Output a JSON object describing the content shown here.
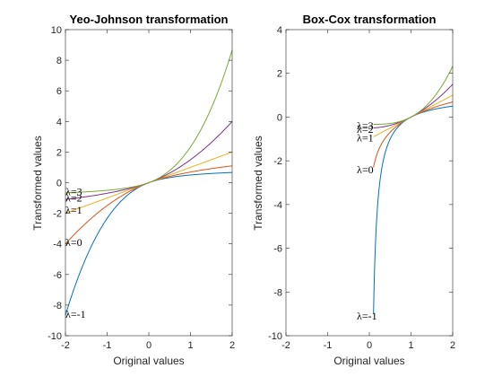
{
  "chart_data": [
    {
      "type": "line",
      "title": "Yeo-Johnson transformation",
      "xlabel": "Original values",
      "ylabel": "Transformed values",
      "xlim": [
        -2,
        2
      ],
      "ylim": [
        -10,
        10
      ],
      "xticks": [
        "-2",
        "-1",
        "0",
        "1",
        "2"
      ],
      "yticks": [
        "-10",
        "-8",
        "-6",
        "-4",
        "-2",
        "0",
        "2",
        "4",
        "6",
        "8",
        "10"
      ],
      "grid": false,
      "x_range": [
        -2,
        2
      ],
      "series": [
        {
          "name": "λ=-1",
          "color": "#0072BD",
          "lambda": -1
        },
        {
          "name": "λ=0",
          "color": "#D95319",
          "lambda": 0
        },
        {
          "name": "λ=1",
          "color": "#EDB120",
          "lambda": 1
        },
        {
          "name": "λ=2",
          "color": "#7E2F8E",
          "lambda": 2
        },
        {
          "name": "λ=3",
          "color": "#77AC30",
          "lambda": 3
        }
      ],
      "annotations": [
        {
          "text": "λ=-1",
          "x": -2,
          "y": -8.6
        },
        {
          "text": "λ=0",
          "x": -2,
          "y": -3.9
        },
        {
          "text": "λ=1",
          "x": -2,
          "y": -1.8
        },
        {
          "text": "λ=2",
          "x": -2,
          "y": -1.0
        },
        {
          "text": "λ=3",
          "x": -2,
          "y": -0.6
        }
      ]
    },
    {
      "type": "line",
      "title": "Box-Cox transformation",
      "xlabel": "Original values",
      "ylabel": "Transformed values",
      "xlim": [
        -2,
        2
      ],
      "ylim": [
        -10,
        4
      ],
      "xticks": [
        "-2",
        "-1",
        "0",
        "1",
        "2"
      ],
      "yticks": [
        "-10",
        "-8",
        "-6",
        "-4",
        "-2",
        "0",
        "2",
        "4"
      ],
      "grid": false,
      "x_range": [
        0.1,
        2
      ],
      "series": [
        {
          "name": "λ=-1",
          "color": "#0072BD",
          "lambda": -1
        },
        {
          "name": "λ=0",
          "color": "#D95319",
          "lambda": 0
        },
        {
          "name": "λ=1",
          "color": "#EDB120",
          "lambda": 1
        },
        {
          "name": "λ=2",
          "color": "#7E2F8E",
          "lambda": 2
        },
        {
          "name": "λ=3",
          "color": "#77AC30",
          "lambda": 3
        }
      ],
      "annotations": [
        {
          "text": "λ=-1",
          "x": -0.3,
          "y": -9.1
        },
        {
          "text": "λ=0",
          "x": -0.3,
          "y": -2.4
        },
        {
          "text": "λ=1",
          "x": -0.3,
          "y": -0.95
        },
        {
          "text": "λ=2",
          "x": -0.3,
          "y": -0.55
        },
        {
          "text": "λ=3",
          "x": -0.3,
          "y": -0.4
        }
      ]
    }
  ]
}
